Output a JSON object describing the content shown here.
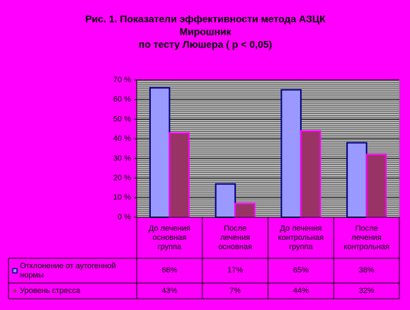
{
  "chart_data": {
    "type": "bar",
    "title": [
      "Рис. 1. Показатели эффективности метода АЗЦК",
      "Мирошник",
      "по тесту Люшера ( p < 0,05)"
    ],
    "categories": [
      "До лечения\nосновная\nгруппа",
      "После\nлечения\nосновная",
      "До лечения\nконтрольная\nгруппа",
      "После\nлечения\nконтрольная"
    ],
    "series": [
      {
        "name": "Отклонение от аутогенной нормы",
        "color": "#9999ff",
        "border": "#000080",
        "values": [
          66,
          17,
          65,
          38
        ],
        "value_labels": [
          "66%",
          "17%",
          "65%",
          "38%"
        ]
      },
      {
        "name": "Уровень стресса",
        "color": "#993366",
        "border": "#ff00ff",
        "values": [
          43,
          7,
          44,
          32
        ],
        "value_labels": [
          "43%",
          "7%",
          "44%",
          "32%"
        ]
      }
    ],
    "ylim": [
      0,
      70
    ],
    "yticks": [
      {
        "value": 0,
        "label": "0 %"
      },
      {
        "value": 10,
        "label": "10 %"
      },
      {
        "value": 20,
        "label": "20 %"
      },
      {
        "value": 30,
        "label": "30 %"
      },
      {
        "value": 40,
        "label": "40 %"
      },
      {
        "value": 50,
        "label": "50 %"
      },
      {
        "value": 60,
        "label": "60 %"
      },
      {
        "value": 70,
        "label": "70 %"
      }
    ],
    "grid": true
  }
}
